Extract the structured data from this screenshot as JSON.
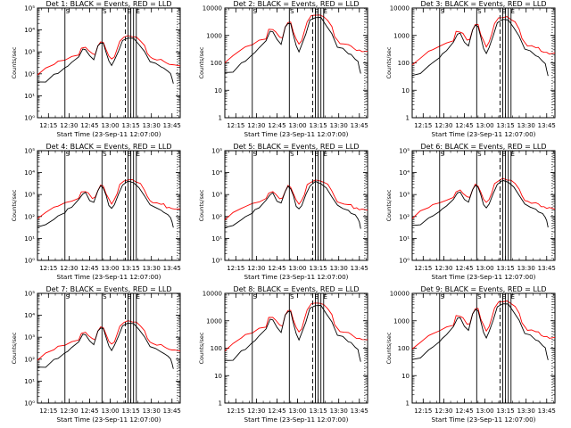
{
  "chart_data": [
    {
      "type": "line",
      "title": "Det 1: BLACK = Events, RED = LLD",
      "scale": "log10",
      "ylim": [
        1,
        100000
      ],
      "yticks": [
        "10⁰",
        "10¹",
        "10²",
        "10³",
        "10⁴",
        "10⁵"
      ],
      "ylabel": "Counts/sec",
      "xlabel": "Start Time (23-Sep-11 12:07:00)",
      "xlim": [
        "12:07",
        "13:51"
      ],
      "xticks": [
        "12:15",
        "12:30",
        "12:45",
        "13:00",
        "13:15",
        "13:30",
        "13:45"
      ],
      "series": [
        {
          "name": "Events",
          "color": "#000000"
        },
        {
          "name": "LLD",
          "color": "#ff0000"
        }
      ]
    },
    {
      "type": "line",
      "title": "Det 2: BLACK = Events, RED = LLD",
      "scale": "plain",
      "ylim": [
        1,
        10000
      ],
      "yticks": [
        "1",
        "10",
        "100",
        "1000",
        "10000"
      ],
      "ylabel": "Counts/sec",
      "xlabel": "Start Time (23-Sep-11 12:07:00)",
      "xlim": [
        "12:07",
        "13:51"
      ],
      "xticks": [
        "12:15",
        "12:30",
        "12:45",
        "13:00",
        "13:15",
        "13:30",
        "13:45"
      ],
      "series": [
        {
          "name": "Events",
          "color": "#000000"
        },
        {
          "name": "LLD",
          "color": "#ff0000"
        }
      ]
    },
    {
      "type": "line",
      "title": "Det 3: BLACK = Events, RED = LLD",
      "scale": "plain",
      "ylim": [
        1,
        10000
      ],
      "yticks": [
        "1",
        "10",
        "100",
        "1000",
        "10000"
      ],
      "ylabel": "Counts/sec",
      "xlabel": "Start Time (23-Sep-11 12:07:00)",
      "xlim": [
        "12:07",
        "13:51"
      ],
      "xticks": [
        "12:15",
        "12:30",
        "12:45",
        "13:00",
        "13:15",
        "13:30",
        "13:45"
      ],
      "series": [
        {
          "name": "Events",
          "color": "#000000"
        },
        {
          "name": "LLD",
          "color": "#ff0000"
        }
      ]
    },
    {
      "type": "line",
      "title": "Det 4: BLACK = Events, RED = LLD",
      "scale": "log10",
      "ylim": [
        1,
        100000
      ],
      "yticks": [
        "10⁰",
        "10¹",
        "10²",
        "10³",
        "10⁴",
        "10⁵"
      ],
      "ylabel": "Counts/sec",
      "xlabel": "Start Time (23-Sep-11 12:07:00)",
      "xlim": [
        "12:07",
        "13:51"
      ],
      "xticks": [
        "12:15",
        "12:30",
        "12:45",
        "13:00",
        "13:15",
        "13:30",
        "13:45"
      ],
      "series": [
        {
          "name": "Events",
          "color": "#000000"
        },
        {
          "name": "LLD",
          "color": "#ff0000"
        }
      ]
    },
    {
      "type": "line",
      "title": "Det 5: BLACK = Events, RED = LLD",
      "scale": "log10",
      "ylim": [
        1,
        100000
      ],
      "yticks": [
        "10⁰",
        "10¹",
        "10²",
        "10³",
        "10⁴",
        "10⁵"
      ],
      "ylabel": "Counts/sec",
      "xlabel": "Start Time (23-Sep-11 12:07:00)",
      "xlim": [
        "12:07",
        "13:51"
      ],
      "xticks": [
        "12:15",
        "12:30",
        "12:45",
        "13:00",
        "13:15",
        "13:30",
        "13:45"
      ],
      "series": [
        {
          "name": "Events",
          "color": "#000000"
        },
        {
          "name": "LLD",
          "color": "#ff0000"
        }
      ]
    },
    {
      "type": "line",
      "title": "Det 6: BLACK = Events, RED = LLD",
      "scale": "log10",
      "ylim": [
        1,
        100000
      ],
      "yticks": [
        "10⁰",
        "10¹",
        "10²",
        "10³",
        "10⁴",
        "10⁵"
      ],
      "ylabel": "Counts/sec",
      "xlabel": "Start Time (23-Sep-11 12:07:00)",
      "xlim": [
        "12:07",
        "13:51"
      ],
      "xticks": [
        "12:15",
        "12:30",
        "12:45",
        "13:00",
        "13:15",
        "13:30",
        "13:45"
      ],
      "series": [
        {
          "name": "Events",
          "color": "#000000"
        },
        {
          "name": "LLD",
          "color": "#ff0000"
        }
      ]
    },
    {
      "type": "line",
      "title": "Det 7: BLACK = Events, RED = LLD",
      "scale": "log10",
      "ylim": [
        1,
        100000
      ],
      "yticks": [
        "10⁰",
        "10¹",
        "10²",
        "10³",
        "10⁴",
        "10⁵"
      ],
      "ylabel": "Counts/sec",
      "xlabel": "Start Time (23-Sep-11 12:07:00)",
      "xlim": [
        "12:07",
        "13:51"
      ],
      "xticks": [
        "12:15",
        "12:30",
        "12:45",
        "13:00",
        "13:15",
        "13:30",
        "13:45"
      ],
      "series": [
        {
          "name": "Events",
          "color": "#000000"
        },
        {
          "name": "LLD",
          "color": "#ff0000"
        }
      ]
    },
    {
      "type": "line",
      "title": "Det 8: BLACK = Events, RED = LLD",
      "scale": "plain",
      "ylim": [
        1,
        10000
      ],
      "yticks": [
        "1",
        "10",
        "100",
        "1000",
        "10000"
      ],
      "ylabel": "Counts/sec",
      "xlabel": "Start Time (23-Sep-11 12:07:00)",
      "xlim": [
        "12:07",
        "13:51"
      ],
      "xticks": [
        "12:15",
        "12:30",
        "12:45",
        "13:00",
        "13:15",
        "13:30",
        "13:45"
      ],
      "series": [
        {
          "name": "Events",
          "color": "#000000"
        },
        {
          "name": "LLD",
          "color": "#ff0000"
        }
      ]
    },
    {
      "type": "line",
      "title": "Det 9: BLACK = Events, RED = LLD",
      "scale": "plain",
      "ylim": [
        1,
        10000
      ],
      "yticks": [
        "1",
        "10",
        "100",
        "1000",
        "10000"
      ],
      "ylabel": "Counts/sec",
      "xlabel": "Start Time (23-Sep-11 12:07:00)",
      "xlim": [
        "12:07",
        "13:51"
      ],
      "xticks": [
        "12:15",
        "12:30",
        "12:45",
        "13:00",
        "13:15",
        "13:30",
        "13:45"
      ],
      "series": [
        {
          "name": "Events",
          "color": "#000000"
        },
        {
          "name": "LLD",
          "color": "#ff0000"
        }
      ]
    }
  ],
  "markers": {
    "solid_times": [
      "12:27",
      "12:54",
      "13:13",
      "13:15",
      "13:17",
      "13:19"
    ],
    "dashed_times": [
      "13:11"
    ],
    "dotted_times": [
      "13:49"
    ],
    "letters": [
      "S",
      "S",
      "E",
      "E"
    ]
  },
  "lld_profile": [
    [
      0,
      1.9
    ],
    [
      6,
      2.2
    ],
    [
      12,
      2.4
    ],
    [
      15,
      2.5
    ],
    [
      20,
      2.6
    ],
    [
      25,
      2.72
    ],
    [
      30,
      2.82
    ],
    [
      32,
      3.12
    ],
    [
      35,
      3.15
    ],
    [
      37,
      3.05
    ],
    [
      40,
      2.85
    ],
    [
      42,
      2.85
    ],
    [
      44,
      3.2
    ],
    [
      46,
      3.42
    ],
    [
      48,
      3.38
    ],
    [
      50,
      3.05
    ],
    [
      52,
      2.78
    ],
    [
      54,
      2.6
    ],
    [
      56,
      2.75
    ],
    [
      58,
      3.05
    ],
    [
      60,
      3.45
    ],
    [
      63,
      3.62
    ],
    [
      66,
      3.68
    ],
    [
      69,
      3.66
    ],
    [
      72,
      3.6
    ],
    [
      75,
      3.48
    ],
    [
      78,
      3.22
    ],
    [
      80,
      2.9
    ],
    [
      82,
      2.72
    ],
    [
      84,
      2.64
    ],
    [
      87,
      2.6
    ],
    [
      90,
      2.58
    ],
    [
      92,
      2.55
    ],
    [
      94,
      2.42
    ],
    [
      96,
      2.4
    ],
    [
      98,
      2.36
    ],
    [
      100,
      2.35
    ],
    [
      104,
      2.33
    ]
  ],
  "events_profile": [
    [
      0,
      1.55
    ],
    [
      6,
      1.6
    ],
    [
      12,
      1.9
    ],
    [
      15,
      2.0
    ],
    [
      20,
      2.2
    ],
    [
      22,
      2.32
    ],
    [
      25,
      2.45
    ],
    [
      30,
      2.75
    ],
    [
      33,
      3.05
    ],
    [
      35,
      3.08
    ],
    [
      38,
      2.75
    ],
    [
      41,
      2.62
    ],
    [
      44,
      3.2
    ],
    [
      46,
      3.38
    ],
    [
      48,
      3.32
    ],
    [
      50,
      2.95
    ],
    [
      52,
      2.52
    ],
    [
      54,
      2.35
    ],
    [
      56,
      2.55
    ],
    [
      59,
      3.0
    ],
    [
      62,
      3.45
    ],
    [
      66,
      3.6
    ],
    [
      70,
      3.55
    ],
    [
      74,
      3.3
    ],
    [
      78,
      2.95
    ],
    [
      82,
      2.52
    ],
    [
      86,
      2.42
    ],
    [
      90,
      2.28
    ],
    [
      92,
      2.2
    ],
    [
      95,
      2.08
    ],
    [
      97,
      1.95
    ],
    [
      98,
      1.75
    ],
    [
      99,
      1.5
    ]
  ],
  "plot_offsets": [
    0.05,
    0.08,
    0.0,
    0.0,
    -0.03,
    0.03,
    0.06,
    -0.02,
    0.04
  ]
}
